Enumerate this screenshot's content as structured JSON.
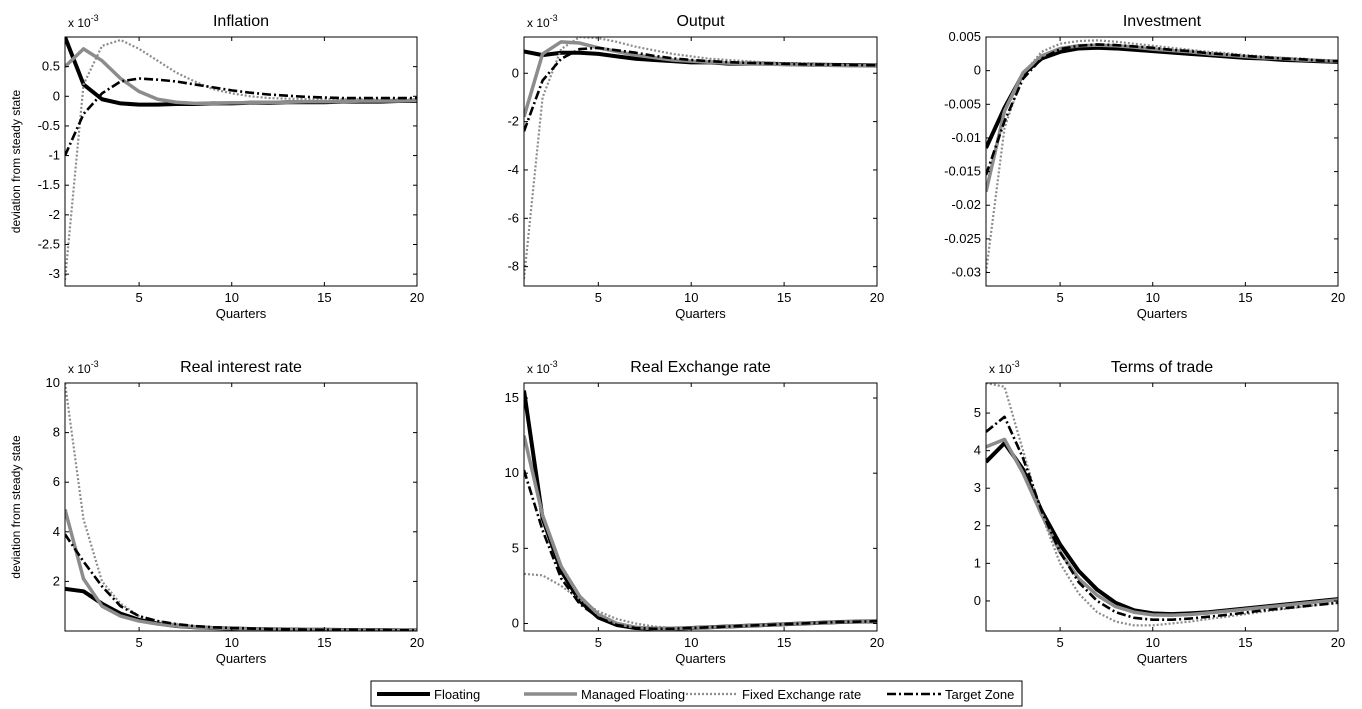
{
  "figure": {
    "legend": {
      "items": [
        "Floating",
        "Managed Floating",
        "Fixed Exchange rate",
        "Target Zone"
      ],
      "placement": "bottom-center"
    }
  },
  "chart_data": [
    {
      "type": "line",
      "title": "Inflation",
      "xlabel": "Quarters",
      "ylabel": "deviation from steady state",
      "multiplier": "x 10",
      "multiplier_exp": "-3",
      "xlim": [
        1,
        20
      ],
      "ylim": [
        -3.2,
        1.0
      ],
      "xticks": [
        5,
        10,
        15,
        20
      ],
      "yticks": [
        0.5,
        0,
        -0.5,
        -1,
        -1.5,
        -2,
        -2.5,
        -3
      ],
      "ytick_labels": [
        "0.5",
        "0",
        "-0.5",
        "-1",
        "-1.5",
        "-2",
        "-2.5",
        "-3"
      ],
      "x": [
        1,
        2,
        3,
        4,
        5,
        6,
        7,
        8,
        9,
        10,
        11,
        12,
        13,
        14,
        15,
        16,
        17,
        18,
        19,
        20
      ],
      "series": [
        {
          "name": "Floating",
          "values": [
            1.0,
            0.2,
            -0.05,
            -0.12,
            -0.14,
            -0.14,
            -0.13,
            -0.13,
            -0.12,
            -0.12,
            -0.11,
            -0.11,
            -0.1,
            -0.1,
            -0.1,
            -0.09,
            -0.09,
            -0.09,
            -0.08,
            -0.08
          ]
        },
        {
          "name": "Managed Floating",
          "values": [
            0.5,
            0.8,
            0.6,
            0.3,
            0.08,
            -0.05,
            -0.1,
            -0.12,
            -0.12,
            -0.11,
            -0.11,
            -0.1,
            -0.1,
            -0.09,
            -0.09,
            -0.09,
            -0.08,
            -0.08,
            -0.08,
            -0.07
          ]
        },
        {
          "name": "Fixed Exchange rate",
          "values": [
            -3.1,
            0.2,
            0.85,
            0.95,
            0.8,
            0.6,
            0.4,
            0.25,
            0.12,
            0.05,
            0.0,
            -0.03,
            -0.04,
            -0.05,
            -0.05,
            -0.05,
            -0.05,
            -0.05,
            -0.05,
            -0.05
          ]
        },
        {
          "name": "Target Zone",
          "values": [
            -1.0,
            -0.3,
            0.05,
            0.25,
            0.3,
            0.28,
            0.25,
            0.2,
            0.15,
            0.1,
            0.06,
            0.03,
            0.01,
            -0.01,
            -0.02,
            -0.03,
            -0.03,
            -0.03,
            -0.03,
            -0.03
          ]
        }
      ]
    },
    {
      "type": "line",
      "title": "Output",
      "xlabel": "Quarters",
      "ylabel": "",
      "multiplier": "x 10",
      "multiplier_exp": "-3",
      "xlim": [
        1,
        20
      ],
      "ylim": [
        -8.8,
        1.5
      ],
      "xticks": [
        5,
        10,
        15,
        20
      ],
      "yticks": [
        0,
        -2,
        -4,
        -6,
        -8
      ],
      "ytick_labels": [
        "0",
        "-2",
        "-4",
        "-6",
        "-8"
      ],
      "x": [
        1,
        2,
        3,
        4,
        5,
        6,
        7,
        8,
        9,
        10,
        11,
        12,
        13,
        14,
        15,
        16,
        17,
        18,
        19,
        20
      ],
      "series": [
        {
          "name": "Floating",
          "values": [
            0.9,
            0.75,
            0.85,
            0.85,
            0.8,
            0.7,
            0.6,
            0.55,
            0.5,
            0.45,
            0.45,
            0.4,
            0.4,
            0.4,
            0.38,
            0.36,
            0.35,
            0.34,
            0.33,
            0.32
          ]
        },
        {
          "name": "Managed Floating",
          "values": [
            -1.8,
            0.8,
            1.3,
            1.25,
            1.05,
            0.9,
            0.75,
            0.65,
            0.55,
            0.5,
            0.45,
            0.42,
            0.4,
            0.38,
            0.36,
            0.34,
            0.33,
            0.32,
            0.31,
            0.3
          ]
        },
        {
          "name": "Fixed Exchange rate",
          "values": [
            -8.5,
            -1.0,
            1.0,
            1.5,
            1.45,
            1.3,
            1.1,
            0.95,
            0.8,
            0.7,
            0.6,
            0.55,
            0.5,
            0.45,
            0.42,
            0.4,
            0.38,
            0.36,
            0.34,
            0.32
          ]
        },
        {
          "name": "Target Zone",
          "values": [
            -2.4,
            -0.3,
            0.6,
            1.0,
            1.05,
            0.95,
            0.85,
            0.72,
            0.62,
            0.55,
            0.5,
            0.46,
            0.43,
            0.41,
            0.39,
            0.37,
            0.36,
            0.35,
            0.34,
            0.33
          ]
        }
      ]
    },
    {
      "type": "line",
      "title": "Investment",
      "xlabel": "Quarters",
      "ylabel": "",
      "multiplier": "",
      "multiplier_exp": "",
      "xlim": [
        1,
        20
      ],
      "ylim": [
        -0.032,
        0.005
      ],
      "xticks": [
        5,
        10,
        15,
        20
      ],
      "yticks": [
        0.005,
        0,
        -0.005,
        -0.01,
        -0.015,
        -0.02,
        -0.025,
        -0.03
      ],
      "ytick_labels": [
        "0.005",
        "0",
        "-0.005",
        "-0.01",
        "-0.015",
        "-0.02",
        "-0.025",
        "-0.03"
      ],
      "x": [
        1,
        2,
        3,
        4,
        5,
        6,
        7,
        8,
        9,
        10,
        11,
        12,
        13,
        14,
        15,
        16,
        17,
        18,
        19,
        20
      ],
      "series": [
        {
          "name": "Floating",
          "values": [
            -0.0115,
            -0.0055,
            -0.0005,
            0.0018,
            0.0028,
            0.0033,
            0.0034,
            0.0033,
            0.0031,
            0.0029,
            0.0027,
            0.0025,
            0.0023,
            0.0021,
            0.0019,
            0.0018,
            0.0016,
            0.0015,
            0.0014,
            0.0013
          ]
        },
        {
          "name": "Managed Floating",
          "values": [
            -0.018,
            -0.006,
            -0.0003,
            0.0022,
            0.0033,
            0.0037,
            0.0038,
            0.0037,
            0.0035,
            0.0032,
            0.003,
            0.0028,
            0.0025,
            0.0023,
            0.0021,
            0.0019,
            0.0018,
            0.0016,
            0.0015,
            0.0014
          ]
        },
        {
          "name": "Fixed Exchange rate",
          "values": [
            -0.03,
            -0.0085,
            -0.0005,
            0.0028,
            0.004,
            0.0044,
            0.0045,
            0.0043,
            0.004,
            0.0037,
            0.0034,
            0.0031,
            0.0028,
            0.0026,
            0.0023,
            0.0021,
            0.0019,
            0.0018,
            0.0016,
            0.0015
          ]
        },
        {
          "name": "Target Zone",
          "values": [
            -0.0155,
            -0.0075,
            -0.0012,
            0.0018,
            0.0032,
            0.0037,
            0.0039,
            0.0038,
            0.0036,
            0.0034,
            0.0031,
            0.0029,
            0.0026,
            0.0024,
            0.0022,
            0.002,
            0.0018,
            0.0017,
            0.0015,
            0.0014
          ]
        }
      ]
    },
    {
      "type": "line",
      "title": "Real interest rate",
      "xlabel": "Quarters",
      "ylabel": "deviation from steady state",
      "multiplier": "x 10",
      "multiplier_exp": "-3",
      "xlim": [
        1,
        20
      ],
      "ylim": [
        0,
        10
      ],
      "xticks": [
        5,
        10,
        15,
        20
      ],
      "yticks": [
        10,
        8,
        6,
        4,
        2
      ],
      "ytick_labels": [
        "10",
        "8",
        "6",
        "4",
        "2"
      ],
      "x": [
        1,
        2,
        3,
        4,
        5,
        6,
        7,
        8,
        9,
        10,
        11,
        12,
        13,
        14,
        15,
        16,
        17,
        18,
        19,
        20
      ],
      "series": [
        {
          "name": "Floating",
          "values": [
            1.7,
            1.6,
            1.1,
            0.7,
            0.45,
            0.3,
            0.2,
            0.15,
            0.12,
            0.1,
            0.08,
            0.07,
            0.06,
            0.05,
            0.05,
            0.04,
            0.04,
            0.04,
            0.03,
            0.03
          ]
        },
        {
          "name": "Managed Floating",
          "values": [
            4.9,
            2.1,
            1.0,
            0.6,
            0.4,
            0.28,
            0.2,
            0.15,
            0.12,
            0.1,
            0.08,
            0.07,
            0.06,
            0.05,
            0.05,
            0.04,
            0.04,
            0.04,
            0.03,
            0.03
          ]
        },
        {
          "name": "Fixed Exchange rate",
          "values": [
            10.0,
            4.5,
            2.0,
            1.1,
            0.6,
            0.4,
            0.28,
            0.2,
            0.15,
            0.12,
            0.1,
            0.08,
            0.07,
            0.06,
            0.05,
            0.05,
            0.04,
            0.04,
            0.03,
            0.03
          ]
        },
        {
          "name": "Target Zone",
          "values": [
            3.9,
            2.8,
            1.8,
            1.0,
            0.6,
            0.4,
            0.28,
            0.2,
            0.15,
            0.12,
            0.1,
            0.08,
            0.07,
            0.06,
            0.05,
            0.05,
            0.04,
            0.04,
            0.03,
            0.03
          ]
        }
      ]
    },
    {
      "type": "line",
      "title": "Real Exchange rate",
      "xlabel": "Quarters",
      "ylabel": "",
      "multiplier": "x 10",
      "multiplier_exp": "-3",
      "xlim": [
        1,
        20
      ],
      "ylim": [
        -0.5,
        16
      ],
      "xticks": [
        5,
        10,
        15,
        20
      ],
      "yticks": [
        15,
        10,
        5,
        0
      ],
      "ytick_labels": [
        "15",
        "10",
        "5",
        "0"
      ],
      "x": [
        1,
        2,
        3,
        4,
        5,
        6,
        7,
        8,
        9,
        10,
        11,
        12,
        13,
        14,
        15,
        16,
        17,
        18,
        19,
        20
      ],
      "series": [
        {
          "name": "Floating",
          "values": [
            15.5,
            7.0,
            3.5,
            1.5,
            0.4,
            -0.1,
            -0.3,
            -0.35,
            -0.35,
            -0.3,
            -0.25,
            -0.2,
            -0.15,
            -0.1,
            -0.05,
            0.0,
            0.05,
            0.1,
            0.12,
            0.15
          ]
        },
        {
          "name": "Managed Floating",
          "values": [
            12.5,
            7.2,
            3.8,
            1.8,
            0.6,
            0.0,
            -0.25,
            -0.35,
            -0.35,
            -0.3,
            -0.25,
            -0.2,
            -0.15,
            -0.1,
            -0.05,
            0.0,
            0.05,
            0.1,
            0.12,
            0.15
          ]
        },
        {
          "name": "Fixed Exchange rate",
          "values": [
            3.3,
            3.2,
            2.5,
            1.6,
            0.8,
            0.3,
            0.0,
            -0.2,
            -0.3,
            -0.3,
            -0.25,
            -0.2,
            -0.15,
            -0.1,
            -0.05,
            0.0,
            0.05,
            0.1,
            0.12,
            0.15
          ]
        },
        {
          "name": "Target Zone",
          "values": [
            10.2,
            6.2,
            3.0,
            1.3,
            0.4,
            -0.1,
            -0.3,
            -0.35,
            -0.35,
            -0.3,
            -0.25,
            -0.2,
            -0.15,
            -0.1,
            -0.05,
            0.0,
            0.05,
            0.1,
            0.12,
            0.15
          ]
        }
      ]
    },
    {
      "type": "line",
      "title": "Terms of trade",
      "xlabel": "Quarters",
      "ylabel": "",
      "multiplier": "x 10",
      "multiplier_exp": "-3",
      "xlim": [
        1,
        20
      ],
      "ylim": [
        -0.8,
        5.8
      ],
      "xticks": [
        5,
        10,
        15,
        20
      ],
      "yticks": [
        5,
        4,
        3,
        2,
        1,
        0
      ],
      "ytick_labels": [
        "5",
        "4",
        "3",
        "2",
        "1",
        "0"
      ],
      "x": [
        1,
        2,
        3,
        4,
        5,
        6,
        7,
        8,
        9,
        10,
        11,
        12,
        13,
        14,
        15,
        16,
        17,
        18,
        19,
        20
      ],
      "series": [
        {
          "name": "Floating",
          "values": [
            3.7,
            4.2,
            3.5,
            2.4,
            1.5,
            0.8,
            0.3,
            -0.05,
            -0.25,
            -0.33,
            -0.35,
            -0.33,
            -0.3,
            -0.25,
            -0.2,
            -0.15,
            -0.1,
            -0.05,
            0.0,
            0.05
          ]
        },
        {
          "name": "Managed Floating",
          "values": [
            4.1,
            4.3,
            3.4,
            2.3,
            1.3,
            0.6,
            0.15,
            -0.15,
            -0.3,
            -0.37,
            -0.38,
            -0.36,
            -0.32,
            -0.27,
            -0.22,
            -0.17,
            -0.12,
            -0.07,
            -0.02,
            0.03
          ]
        },
        {
          "name": "Fixed Exchange rate",
          "values": [
            5.8,
            5.7,
            4.0,
            2.3,
            1.0,
            0.2,
            -0.3,
            -0.55,
            -0.65,
            -0.65,
            -0.6,
            -0.55,
            -0.48,
            -0.42,
            -0.35,
            -0.28,
            -0.22,
            -0.16,
            -0.1,
            -0.05
          ]
        },
        {
          "name": "Target Zone",
          "values": [
            4.5,
            4.9,
            3.8,
            2.4,
            1.3,
            0.5,
            0.0,
            -0.3,
            -0.45,
            -0.5,
            -0.5,
            -0.47,
            -0.42,
            -0.37,
            -0.31,
            -0.25,
            -0.2,
            -0.15,
            -0.1,
            -0.05
          ]
        }
      ]
    }
  ]
}
